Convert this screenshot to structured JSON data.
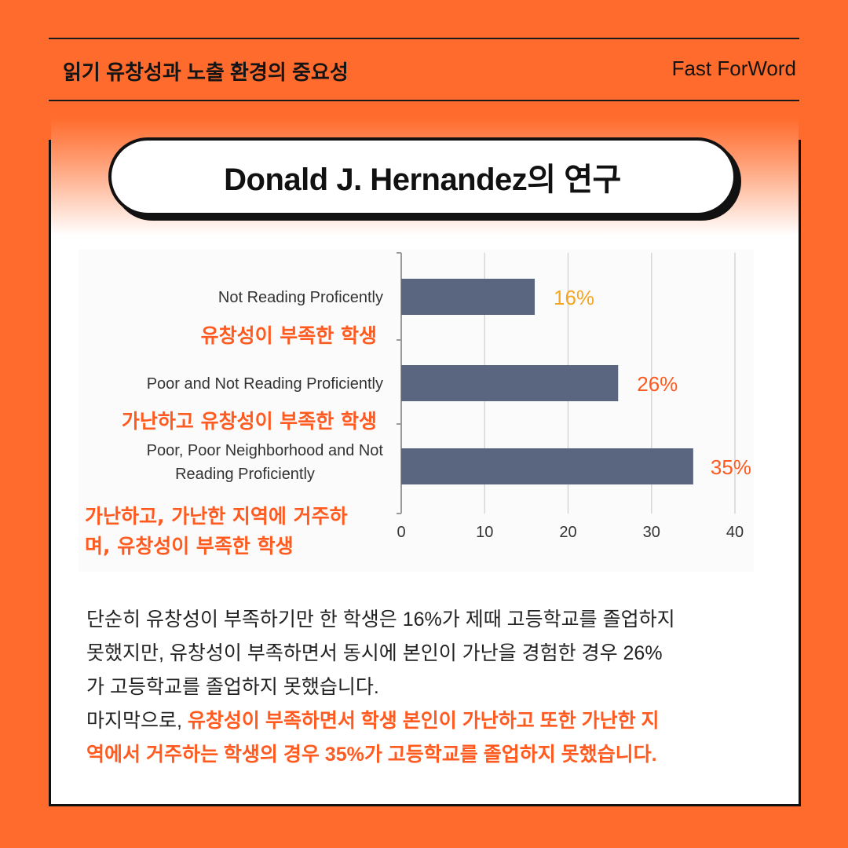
{
  "header": {
    "left_title": "읽기 유창성과 노출 환경의 중요성",
    "right_brand": "Fast ForWord"
  },
  "pill_title": "Donald J. Hernandez의 연구",
  "colors": {
    "background": "#ff6b2c",
    "bar": "#5a6680",
    "accent_orange": "#ff5a1f",
    "label_yellow": "#f5a623"
  },
  "chart_data": {
    "type": "bar",
    "orientation": "horizontal",
    "categories": [
      "Not Reading Proficently",
      "Poor and Not Reading Proficiently",
      "Poor, Poor Neighborhood and Not Reading Proficiently"
    ],
    "category_lines": [
      [
        "Not Reading Proficently"
      ],
      [
        "Poor and Not Reading Proficiently"
      ],
      [
        "Poor, Poor Neighborhood and Not",
        "Reading Proficiently"
      ]
    ],
    "korean_labels": [
      [
        "유창성이 부족한 학생"
      ],
      [
        "가난하고 유창성이 부족한 학생"
      ],
      [
        "가난하고, 가난한 지역에 거주하",
        "며, 유창성이 부족한 학생"
      ]
    ],
    "values": [
      16,
      26,
      35
    ],
    "value_labels": [
      "16%",
      "26%",
      "35%"
    ],
    "value_label_colors": [
      "#f5a623",
      "#ff5a1f",
      "#ff5a1f"
    ],
    "xlim": [
      0,
      40
    ],
    "xticks": [
      "0",
      "10",
      "20",
      "30",
      "40"
    ],
    "grid": true
  },
  "body": {
    "line1": "단순히 유창성이 부족하기만 한 학생은 16%가 제때 고등학교를 졸업하지",
    "line2": "못했지만, 유창성이 부족하면서 동시에 본인이 가난을 경험한 경우 26%",
    "line3": "가 고등학교를 졸업하지 못했습니다.",
    "line4_plain": "마지막으로, ",
    "line4_highlight": "유창성이 부족하면서 학생 본인이 가난하고 또한 가난한 지",
    "line5_highlight": "역에서 거주하는 학생의 경우 35%가 고등학교를 졸업하지 못했습니다."
  }
}
